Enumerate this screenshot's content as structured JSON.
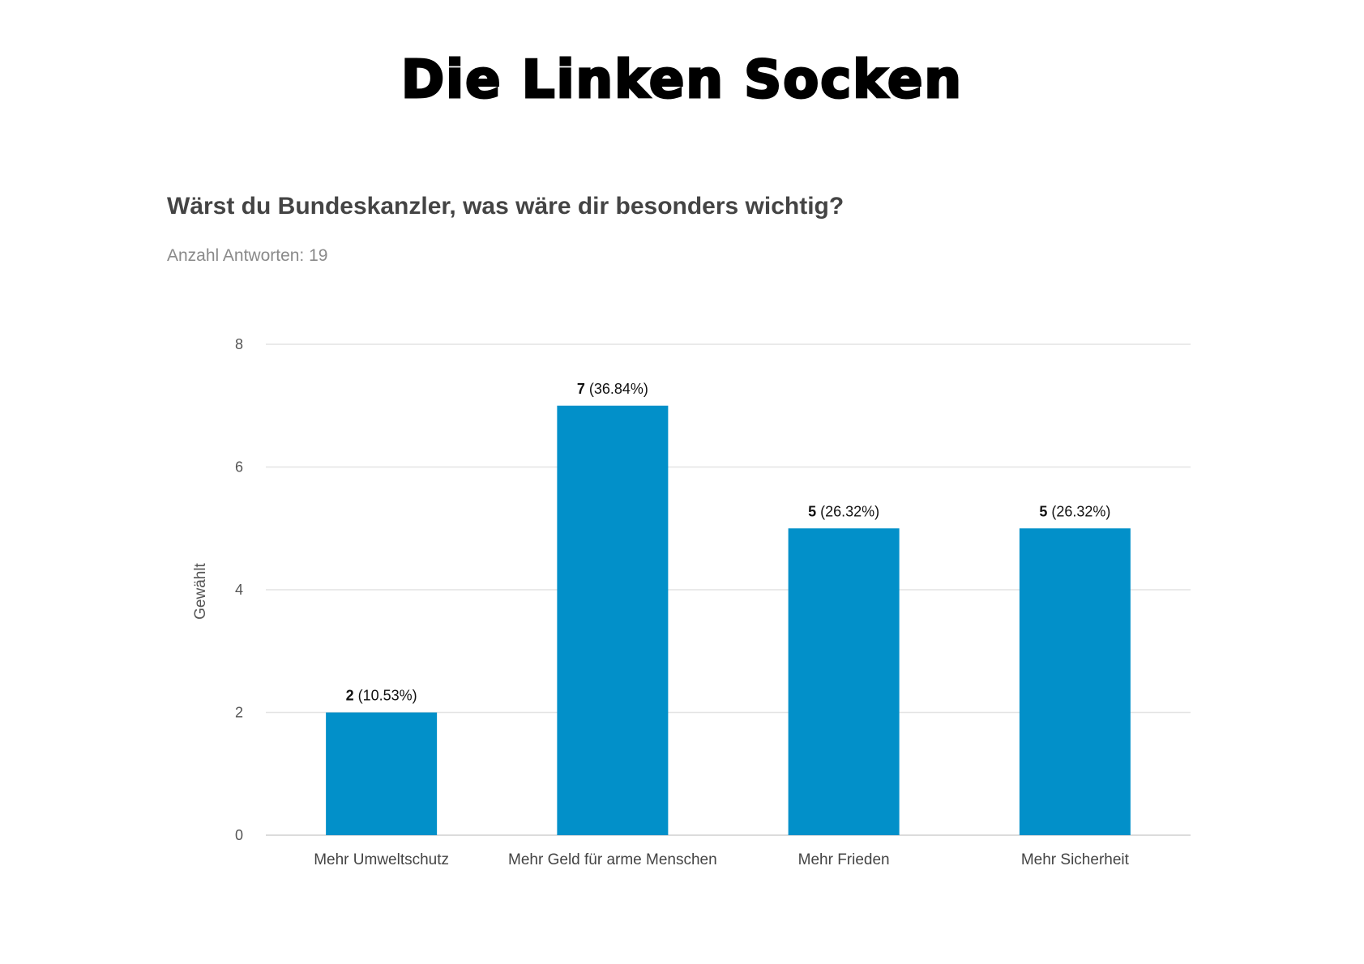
{
  "brand": "Die Linken Socken",
  "question": "Wärst du Bundeskanzler, was wäre dir besonders wichtig?",
  "response_count": "Anzahl Antworten: 19",
  "chart_data": {
    "type": "bar",
    "title": "Wärst du Bundeskanzler, was wäre dir besonders wichtig?",
    "xlabel": "",
    "ylabel": "Gewählt",
    "ylim": [
      0,
      8
    ],
    "yticks": [
      0,
      2,
      4,
      6,
      8
    ],
    "grid": true,
    "bar_color": "#0290C9",
    "categories": [
      "Mehr Umweltschutz",
      "Mehr Geld für arme Menschen",
      "Mehr Frieden",
      "Mehr Sicherheit"
    ],
    "values": [
      2,
      7,
      5,
      5
    ],
    "percent_labels": [
      "(10.53%)",
      "(36.84%)",
      "(26.32%)",
      "(26.32%)"
    ]
  }
}
